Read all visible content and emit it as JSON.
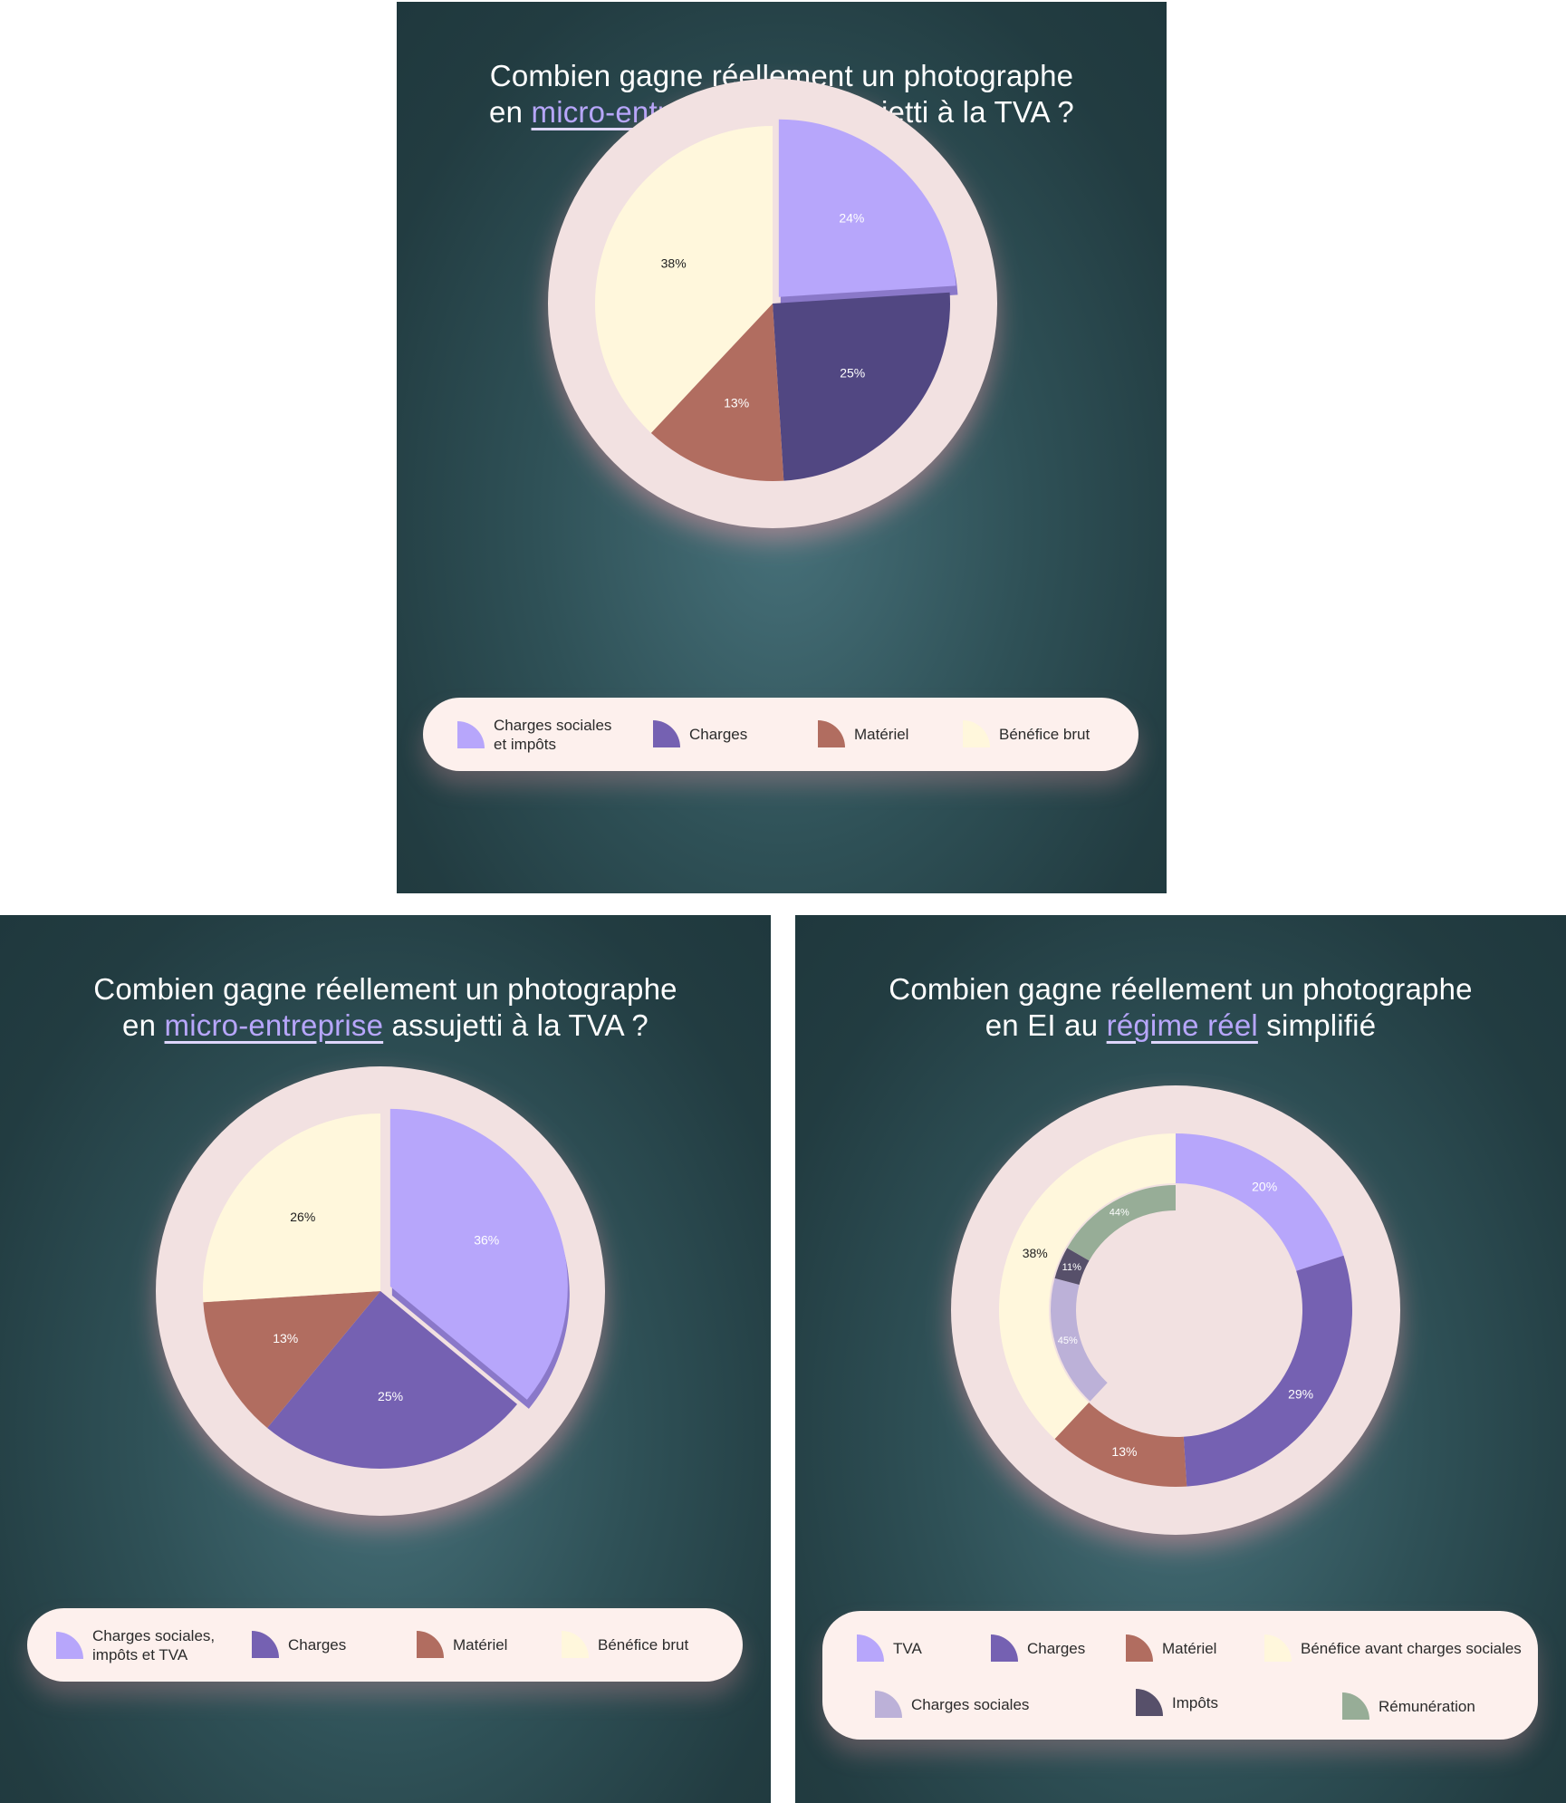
{
  "colors": {
    "lavender": "#b7a6fb",
    "purple": "#7561b2",
    "dark_purple": "#514782",
    "terracotta": "#b16d60",
    "cream": "#fff7dc",
    "lilac": "#bcb1d8",
    "slate": "#57506a",
    "sage": "#97ad97",
    "ring": "#f2e1e1"
  },
  "panels": [
    {
      "title_before": "Combien gagne réellement un photographe",
      "title_line2_before": "en ",
      "title_highlight": "micro-entreprise",
      "title_after": " non assujetti à la TVA ?",
      "legend": [
        {
          "label": "Charges sociales\net impôts",
          "icon": "quarter-circle-swatch",
          "color": "#b7a6fb"
        },
        {
          "label": "Charges",
          "icon": "quarter-circle-swatch",
          "color": "#7561b2"
        },
        {
          "label": "Matériel",
          "icon": "quarter-circle-swatch",
          "color": "#b16d60"
        },
        {
          "label": "Bénéfice brut",
          "icon": "quarter-circle-swatch",
          "color": "#fff7dc"
        }
      ]
    },
    {
      "title_before": "Combien gagne réellement un photographe",
      "title_line2_before": "en ",
      "title_highlight": "micro-entreprise",
      "title_after": " assujetti à la TVA ?",
      "legend": [
        {
          "label": "Charges sociales,\nimpôts et TVA",
          "icon": "quarter-circle-swatch",
          "color": "#b7a6fb"
        },
        {
          "label": "Charges",
          "icon": "quarter-circle-swatch",
          "color": "#7561b2"
        },
        {
          "label": "Matériel",
          "icon": "quarter-circle-swatch",
          "color": "#b16d60"
        },
        {
          "label": "Bénéfice brut",
          "icon": "quarter-circle-swatch",
          "color": "#fff7dc"
        }
      ]
    },
    {
      "title_before": "Combien gagne réellement un photographe",
      "title_line2_before": "en EI au ",
      "title_highlight": "régime réel",
      "title_after": " simplifié",
      "legend": [
        {
          "label": "TVA",
          "icon": "quarter-circle-swatch",
          "color": "#b7a6fb"
        },
        {
          "label": "Charges",
          "icon": "quarter-circle-swatch",
          "color": "#7561b2"
        },
        {
          "label": "Matériel",
          "icon": "quarter-circle-swatch",
          "color": "#b16d60"
        },
        {
          "label": "Bénéfice avant charges sociales",
          "icon": "quarter-circle-swatch",
          "color": "#fff7dc"
        },
        {
          "label": "Charges sociales",
          "icon": "quarter-circle-swatch",
          "color": "#bcb1d8"
        },
        {
          "label": "Impôts",
          "icon": "quarter-circle-swatch",
          "color": "#57506a"
        },
        {
          "label": "Rémunération",
          "icon": "quarter-circle-swatch",
          "color": "#97ad97"
        }
      ]
    }
  ],
  "chart_data": [
    {
      "type": "pie",
      "title": "Combien gagne réellement un photographe en micro-entreprise non assujetti à la TVA ?",
      "series": [
        {
          "categories": [
            "Charges sociales et impôts",
            "Charges",
            "Matériel",
            "Bénéfice brut"
          ],
          "values": [
            24,
            25,
            13,
            38
          ],
          "labels": [
            "24%",
            "25%",
            "13%",
            "38%"
          ],
          "colors": [
            "#b7a6fb",
            "#514782",
            "#b16d60",
            "#fff7dc"
          ]
        }
      ],
      "legend": "bottom"
    },
    {
      "type": "pie",
      "title": "Combien gagne réellement un photographe en micro-entreprise assujetti à la TVA ?",
      "series": [
        {
          "categories": [
            "Charges sociales, impôts et TVA",
            "Charges",
            "Matériel",
            "Bénéfice brut"
          ],
          "values": [
            36,
            25,
            13,
            26
          ],
          "labels": [
            "36%",
            "25%",
            "13%",
            "26%"
          ],
          "colors": [
            "#b7a6fb",
            "#7561b2",
            "#b16d60",
            "#fff7dc"
          ]
        }
      ],
      "legend": "bottom"
    },
    {
      "type": "pie",
      "variant": "nested-donut",
      "title": "Combien gagne réellement un photographe en EI au régime réel simplifié",
      "series": [
        {
          "ring": "outer",
          "categories": [
            "TVA",
            "Charges",
            "Matériel",
            "Bénéfice avant charges sociales"
          ],
          "values": [
            20,
            29,
            13,
            38
          ],
          "labels": [
            "20%",
            "29%",
            "13%",
            "38%"
          ],
          "colors": [
            "#b7a6fb",
            "#7561b2",
            "#b16d60",
            "#fff7dc"
          ]
        },
        {
          "ring": "inner",
          "breakdown_of": "Bénéfice avant charges sociales",
          "categories": [
            "Charges sociales",
            "Impôts",
            "Rémunération"
          ],
          "values": [
            45,
            11,
            44
          ],
          "labels": [
            "45%",
            "11%",
            "44%"
          ],
          "colors": [
            "#bcb1d8",
            "#57506a",
            "#97ad97"
          ]
        }
      ],
      "legend": "bottom"
    }
  ]
}
